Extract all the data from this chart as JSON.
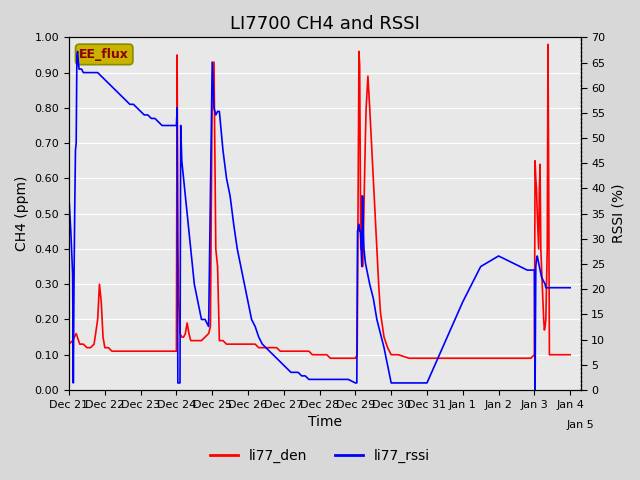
{
  "title": "LI7700 CH4 and RSSI",
  "xlabel": "Time",
  "ylabel_left": "CH4 (ppm)",
  "ylabel_right": "RSSI (%)",
  "ylim_left": [
    0.0,
    1.0
  ],
  "ylim_right": [
    0,
    70
  ],
  "yticks_left": [
    0.0,
    0.1,
    0.2,
    0.3,
    0.4,
    0.5,
    0.6,
    0.7,
    0.8,
    0.9,
    1.0
  ],
  "yticks_right": [
    0,
    5,
    10,
    15,
    20,
    25,
    30,
    35,
    40,
    45,
    50,
    55,
    60,
    65,
    70
  ],
  "color_ch4": "#ff0000",
  "color_rssi": "#0000ff",
  "legend_label_ch4": "li77_den",
  "legend_label_rssi": "li77_rssi",
  "text_box_label": "EE_flux",
  "text_box_color": "#c8b400",
  "background_color": "#d8d8d8",
  "plot_bg_color": "#e8e8e8",
  "title_fontsize": 13,
  "axis_fontsize": 10,
  "tick_fontsize": 8,
  "legend_fontsize": 10,
  "xtick_positions": [
    21,
    22,
    23,
    24,
    25,
    26,
    27,
    28,
    29,
    30,
    31,
    32,
    33,
    34,
    35
  ],
  "xtick_labels": [
    "Dec 21",
    "Dec 22",
    "Dec 23",
    "Dec 24",
    "Dec 25",
    "Dec 26",
    "Dec 27",
    "Dec 28",
    "Dec 29",
    "Dec 30",
    "Dec 31",
    "Jan 1",
    "Jan 2",
    "Jan 3",
    "Jan 4"
  ],
  "xstart_day": 21,
  "xend_day": 35.3,
  "ch4_data": [
    [
      21.0,
      0.13
    ],
    [
      21.1,
      0.14
    ],
    [
      21.2,
      0.16
    ],
    [
      21.3,
      0.13
    ],
    [
      21.4,
      0.13
    ],
    [
      21.5,
      0.12
    ],
    [
      21.6,
      0.12
    ],
    [
      21.7,
      0.13
    ],
    [
      21.8,
      0.2
    ],
    [
      21.85,
      0.3
    ],
    [
      21.9,
      0.25
    ],
    [
      21.95,
      0.15
    ],
    [
      22.0,
      0.12
    ],
    [
      22.1,
      0.12
    ],
    [
      22.2,
      0.11
    ],
    [
      22.3,
      0.11
    ],
    [
      22.4,
      0.11
    ],
    [
      22.5,
      0.11
    ],
    [
      22.6,
      0.11
    ],
    [
      22.7,
      0.11
    ],
    [
      22.8,
      0.11
    ],
    [
      22.9,
      0.11
    ],
    [
      23.0,
      0.11
    ],
    [
      23.1,
      0.11
    ],
    [
      23.2,
      0.11
    ],
    [
      23.3,
      0.11
    ],
    [
      23.4,
      0.11
    ],
    [
      23.5,
      0.11
    ],
    [
      23.6,
      0.11
    ],
    [
      23.7,
      0.11
    ],
    [
      23.8,
      0.11
    ],
    [
      23.9,
      0.11
    ],
    [
      24.0,
      0.11
    ],
    [
      24.02,
      0.95
    ],
    [
      24.04,
      0.42
    ],
    [
      24.06,
      0.26
    ],
    [
      24.08,
      0.22
    ],
    [
      24.1,
      0.16
    ],
    [
      24.15,
      0.15
    ],
    [
      24.2,
      0.15
    ],
    [
      24.25,
      0.16
    ],
    [
      24.3,
      0.19
    ],
    [
      24.35,
      0.16
    ],
    [
      24.4,
      0.14
    ],
    [
      24.5,
      0.14
    ],
    [
      24.6,
      0.14
    ],
    [
      24.7,
      0.14
    ],
    [
      24.8,
      0.15
    ],
    [
      24.9,
      0.16
    ],
    [
      24.95,
      0.18
    ],
    [
      25.0,
      0.86
    ],
    [
      25.05,
      0.93
    ],
    [
      25.1,
      0.4
    ],
    [
      25.15,
      0.35
    ],
    [
      25.2,
      0.14
    ],
    [
      25.3,
      0.14
    ],
    [
      25.4,
      0.13
    ],
    [
      25.5,
      0.13
    ],
    [
      25.6,
      0.13
    ],
    [
      25.7,
      0.13
    ],
    [
      25.8,
      0.13
    ],
    [
      25.9,
      0.13
    ],
    [
      26.0,
      0.13
    ],
    [
      26.1,
      0.13
    ],
    [
      26.2,
      0.13
    ],
    [
      26.3,
      0.12
    ],
    [
      26.4,
      0.12
    ],
    [
      26.5,
      0.12
    ],
    [
      26.6,
      0.12
    ],
    [
      26.7,
      0.12
    ],
    [
      26.8,
      0.12
    ],
    [
      26.9,
      0.11
    ],
    [
      27.0,
      0.11
    ],
    [
      27.1,
      0.11
    ],
    [
      27.2,
      0.11
    ],
    [
      27.3,
      0.11
    ],
    [
      27.4,
      0.11
    ],
    [
      27.5,
      0.11
    ],
    [
      27.6,
      0.11
    ],
    [
      27.7,
      0.11
    ],
    [
      27.8,
      0.1
    ],
    [
      27.9,
      0.1
    ],
    [
      28.0,
      0.1
    ],
    [
      28.1,
      0.1
    ],
    [
      28.2,
      0.1
    ],
    [
      28.3,
      0.09
    ],
    [
      28.4,
      0.09
    ],
    [
      28.5,
      0.09
    ],
    [
      28.6,
      0.09
    ],
    [
      28.7,
      0.09
    ],
    [
      28.8,
      0.09
    ],
    [
      28.9,
      0.09
    ],
    [
      29.0,
      0.09
    ],
    [
      29.05,
      0.1
    ],
    [
      29.1,
      0.96
    ],
    [
      29.12,
      0.92
    ],
    [
      29.14,
      0.6
    ],
    [
      29.15,
      0.4
    ],
    [
      29.16,
      0.5
    ],
    [
      29.17,
      0.55
    ],
    [
      29.18,
      0.45
    ],
    [
      29.2,
      0.35
    ],
    [
      29.22,
      0.42
    ],
    [
      29.24,
      0.52
    ],
    [
      29.26,
      0.62
    ],
    [
      29.28,
      0.72
    ],
    [
      29.3,
      0.8
    ],
    [
      29.35,
      0.89
    ],
    [
      29.4,
      0.8
    ],
    [
      29.45,
      0.7
    ],
    [
      29.5,
      0.6
    ],
    [
      29.55,
      0.5
    ],
    [
      29.6,
      0.4
    ],
    [
      29.65,
      0.3
    ],
    [
      29.7,
      0.22
    ],
    [
      29.8,
      0.15
    ],
    [
      29.9,
      0.12
    ],
    [
      30.0,
      0.1
    ],
    [
      30.1,
      0.1
    ],
    [
      30.2,
      0.1
    ],
    [
      30.5,
      0.09
    ],
    [
      31.0,
      0.09
    ],
    [
      32.0,
      0.09
    ],
    [
      33.0,
      0.09
    ],
    [
      33.5,
      0.09
    ],
    [
      33.9,
      0.09
    ],
    [
      34.0,
      0.1
    ],
    [
      34.02,
      0.65
    ],
    [
      34.04,
      0.6
    ],
    [
      34.06,
      0.57
    ],
    [
      34.08,
      0.5
    ],
    [
      34.1,
      0.45
    ],
    [
      34.12,
      0.4
    ],
    [
      34.14,
      0.57
    ],
    [
      34.16,
      0.64
    ],
    [
      34.18,
      0.4
    ],
    [
      34.2,
      0.35
    ],
    [
      34.22,
      0.3
    ],
    [
      34.24,
      0.25
    ],
    [
      34.26,
      0.2
    ],
    [
      34.28,
      0.17
    ],
    [
      34.3,
      0.18
    ],
    [
      34.32,
      0.2
    ],
    [
      34.34,
      0.3
    ],
    [
      34.36,
      0.4
    ],
    [
      34.38,
      0.98
    ],
    [
      34.4,
      0.6
    ],
    [
      34.42,
      0.1
    ],
    [
      34.5,
      0.1
    ],
    [
      34.6,
      0.1
    ],
    [
      34.7,
      0.1
    ],
    [
      34.8,
      0.1
    ],
    [
      34.9,
      0.1
    ],
    [
      35.0,
      0.1
    ]
  ],
  "rssi_data": [
    [
      21.0,
      38.0
    ],
    [
      21.05,
      31.5
    ],
    [
      21.1,
      23.1
    ],
    [
      21.12,
      1.4
    ],
    [
      21.14,
      22.4
    ],
    [
      21.16,
      36.4
    ],
    [
      21.18,
      47.6
    ],
    [
      21.2,
      49.0
    ],
    [
      21.22,
      66.5
    ],
    [
      21.24,
      67.2
    ],
    [
      21.26,
      65.1
    ],
    [
      21.28,
      63.7
    ],
    [
      21.3,
      63.7
    ],
    [
      21.35,
      63.7
    ],
    [
      21.4,
      63.0
    ],
    [
      21.5,
      63.0
    ],
    [
      21.6,
      63.0
    ],
    [
      21.7,
      63.0
    ],
    [
      21.8,
      63.0
    ],
    [
      21.9,
      62.3
    ],
    [
      22.0,
      61.6
    ],
    [
      22.1,
      60.9
    ],
    [
      22.2,
      60.2
    ],
    [
      22.3,
      59.5
    ],
    [
      22.4,
      58.8
    ],
    [
      22.5,
      58.1
    ],
    [
      22.6,
      57.4
    ],
    [
      22.7,
      56.7
    ],
    [
      22.8,
      56.7
    ],
    [
      22.9,
      56.0
    ],
    [
      23.0,
      55.3
    ],
    [
      23.1,
      54.6
    ],
    [
      23.2,
      54.6
    ],
    [
      23.3,
      53.9
    ],
    [
      23.4,
      53.9
    ],
    [
      23.5,
      53.2
    ],
    [
      23.6,
      52.5
    ],
    [
      23.7,
      52.5
    ],
    [
      23.8,
      52.5
    ],
    [
      23.9,
      52.5
    ],
    [
      24.0,
      52.5
    ],
    [
      24.02,
      56.0
    ],
    [
      24.04,
      1.4
    ],
    [
      24.06,
      1.4
    ],
    [
      24.08,
      1.4
    ],
    [
      24.1,
      1.4
    ],
    [
      24.12,
      52.5
    ],
    [
      24.15,
      45.5
    ],
    [
      24.2,
      42.0
    ],
    [
      24.25,
      38.5
    ],
    [
      24.3,
      35.0
    ],
    [
      24.35,
      31.5
    ],
    [
      24.4,
      28.0
    ],
    [
      24.45,
      24.5
    ],
    [
      24.5,
      21.0
    ],
    [
      24.6,
      17.5
    ],
    [
      24.7,
      14.0
    ],
    [
      24.8,
      14.0
    ],
    [
      24.9,
      12.6
    ],
    [
      25.0,
      65.1
    ],
    [
      25.05,
      56.0
    ],
    [
      25.1,
      54.6
    ],
    [
      25.15,
      55.3
    ],
    [
      25.2,
      55.3
    ],
    [
      25.3,
      47.6
    ],
    [
      25.4,
      42.0
    ],
    [
      25.5,
      38.5
    ],
    [
      25.6,
      32.9
    ],
    [
      25.7,
      28.0
    ],
    [
      25.8,
      24.5
    ],
    [
      25.9,
      21.0
    ],
    [
      26.0,
      17.5
    ],
    [
      26.1,
      14.0
    ],
    [
      26.2,
      12.6
    ],
    [
      26.3,
      10.5
    ],
    [
      26.4,
      9.1
    ],
    [
      26.5,
      8.4
    ],
    [
      26.6,
      7.7
    ],
    [
      26.7,
      7.0
    ],
    [
      26.8,
      6.3
    ],
    [
      26.9,
      5.6
    ],
    [
      27.0,
      4.9
    ],
    [
      27.1,
      4.2
    ],
    [
      27.2,
      3.5
    ],
    [
      27.3,
      3.5
    ],
    [
      27.4,
      3.5
    ],
    [
      27.5,
      2.8
    ],
    [
      27.6,
      2.8
    ],
    [
      27.7,
      2.1
    ],
    [
      27.8,
      2.1
    ],
    [
      27.9,
      2.1
    ],
    [
      28.0,
      2.1
    ],
    [
      28.2,
      2.1
    ],
    [
      28.4,
      2.1
    ],
    [
      28.6,
      2.1
    ],
    [
      28.8,
      2.1
    ],
    [
      29.0,
      1.4
    ],
    [
      29.02,
      1.4
    ],
    [
      29.04,
      1.4
    ],
    [
      29.06,
      31.5
    ],
    [
      29.08,
      32.2
    ],
    [
      29.1,
      32.9
    ],
    [
      29.12,
      31.5
    ],
    [
      29.14,
      31.5
    ],
    [
      29.16,
      28.0
    ],
    [
      29.18,
      24.5
    ],
    [
      29.2,
      38.5
    ],
    [
      29.22,
      31.5
    ],
    [
      29.24,
      28.0
    ],
    [
      29.26,
      26.6
    ],
    [
      29.28,
      25.2
    ],
    [
      29.3,
      24.5
    ],
    [
      29.4,
      21.0
    ],
    [
      29.5,
      18.2
    ],
    [
      29.6,
      14.0
    ],
    [
      29.7,
      11.2
    ],
    [
      29.8,
      8.4
    ],
    [
      29.9,
      4.9
    ],
    [
      30.0,
      1.4
    ],
    [
      30.1,
      1.4
    ],
    [
      30.2,
      1.4
    ],
    [
      30.3,
      1.4
    ],
    [
      30.4,
      1.4
    ],
    [
      30.5,
      1.4
    ],
    [
      31.0,
      1.4
    ],
    [
      32.0,
      17.5
    ],
    [
      32.5,
      24.5
    ],
    [
      33.0,
      26.6
    ],
    [
      33.2,
      25.9
    ],
    [
      33.4,
      25.2
    ],
    [
      33.6,
      24.5
    ],
    [
      33.8,
      23.8
    ],
    [
      34.0,
      23.8
    ],
    [
      34.02,
      0.0
    ],
    [
      34.04,
      24.5
    ],
    [
      34.06,
      25.9
    ],
    [
      34.08,
      26.6
    ],
    [
      34.1,
      25.9
    ],
    [
      34.12,
      25.2
    ],
    [
      34.14,
      24.5
    ],
    [
      34.16,
      23.8
    ],
    [
      34.18,
      23.1
    ],
    [
      34.2,
      22.4
    ],
    [
      34.25,
      21.7
    ],
    [
      34.3,
      21.0
    ],
    [
      34.32,
      20.3
    ],
    [
      34.35,
      20.3
    ],
    [
      34.38,
      20.3
    ],
    [
      34.4,
      20.3
    ],
    [
      34.42,
      20.3
    ],
    [
      34.5,
      20.3
    ],
    [
      34.6,
      20.3
    ],
    [
      34.7,
      20.3
    ],
    [
      34.8,
      20.3
    ],
    [
      34.9,
      20.3
    ],
    [
      35.0,
      20.3
    ]
  ]
}
